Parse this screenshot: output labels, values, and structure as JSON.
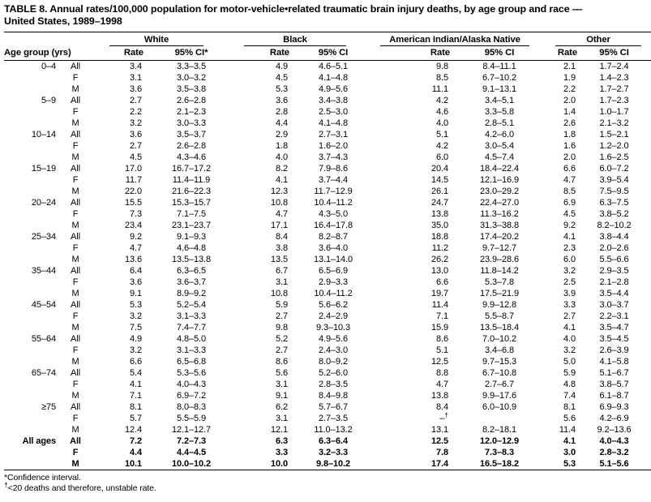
{
  "title_line1": "TABLE 8. Annual rates/100,000 population for motor-vehicle•related traumatic brain injury deaths, by age group and race —",
  "title_line2": "United States, 1989–1998",
  "header": {
    "age_group_label": "Age group (yrs)",
    "groups": [
      {
        "name": "White",
        "rate_label": "Rate",
        "ci_label": "95% CI*"
      },
      {
        "name": "Black",
        "rate_label": "Rate",
        "ci_label": "95% CI"
      },
      {
        "name": "American Indian/Alaska Native",
        "rate_label": "Rate",
        "ci_label": "95% CI"
      },
      {
        "name": "Other",
        "rate_label": "Rate",
        "ci_label": "95% CI"
      }
    ]
  },
  "table": {
    "columns": [
      "Age group",
      "Sex",
      "White Rate",
      "White 95% CI",
      "Black Rate",
      "Black 95% CI",
      "American Indian/Alaska Native Rate",
      "American Indian/Alaska Native 95% CI",
      "Other Rate",
      "Other 95% CI"
    ],
    "rows": [
      {
        "c": [
          "0–4",
          "All",
          "3.4",
          "3.3–3.5",
          "4.9",
          "4.6–5.1",
          "9.8",
          "8.4–11.1",
          "2.1",
          "1.7–2.4"
        ]
      },
      {
        "c": [
          "",
          "F",
          "3.1",
          "3.0–3.2",
          "4.5",
          "4.1–4.8",
          "8.5",
          "6.7–10.2",
          "1.9",
          "1.4–2.3"
        ]
      },
      {
        "c": [
          "",
          "M",
          "3.6",
          "3.5–3.8",
          "5.3",
          "4.9–5.6",
          "11.1",
          "9.1–13.1",
          "2.2",
          "1.7–2.7"
        ]
      },
      {
        "c": [
          "5–9",
          "All",
          "2.7",
          "2.6–2.8",
          "3.6",
          "3.4–3.8",
          "4.2",
          "3.4–5.1",
          "2.0",
          "1.7–2.3"
        ]
      },
      {
        "c": [
          "",
          "F",
          "2.2",
          "2.1–2.3",
          "2.8",
          "2.5–3.0",
          "4.6",
          "3.3–5.8",
          "1.4",
          "1.0–1.7"
        ]
      },
      {
        "c": [
          "",
          "M",
          "3.2",
          "3.0–3.3",
          "4.4",
          "4.1–4.8",
          "4.0",
          "2.8–5.1",
          "2.6",
          "2.1–3.2"
        ]
      },
      {
        "c": [
          "10–14",
          "All",
          "3.6",
          "3.5–3.7",
          "2.9",
          "2.7–3.1",
          "5.1",
          "4.2–6.0",
          "1.8",
          "1.5–2.1"
        ]
      },
      {
        "c": [
          "",
          "F",
          "2.7",
          "2.6–2.8",
          "1.8",
          "1.6–2.0",
          "4.2",
          "3.0–5.4",
          "1.6",
          "1.2–2.0"
        ]
      },
      {
        "c": [
          "",
          "M",
          "4.5",
          "4.3–4.6",
          "4.0",
          "3.7–4.3",
          "6.0",
          "4.5–7.4",
          "2.0",
          "1.6–2.5"
        ]
      },
      {
        "c": [
          "15–19",
          "All",
          "17.0",
          "16.7–17.2",
          "8.2",
          "7.9–8.6",
          "20.4",
          "18.4–22.4",
          "6.6",
          "6.0–7.2"
        ]
      },
      {
        "c": [
          "",
          "F",
          "11.7",
          "11.4–11.9",
          "4.1",
          "3.7–4.4",
          "14.5",
          "12.1–16.9",
          "4.7",
          "3.9–5.4"
        ]
      },
      {
        "c": [
          "",
          "M",
          "22.0",
          "21.6–22.3",
          "12.3",
          "11.7–12.9",
          "26.1",
          "23.0–29.2",
          "8.5",
          "7.5–9.5"
        ]
      },
      {
        "c": [
          "20–24",
          "All",
          "15.5",
          "15.3–15.7",
          "10.8",
          "10.4–11.2",
          "24.7",
          "22.4–27.0",
          "6.9",
          "6.3–7.5"
        ]
      },
      {
        "c": [
          "",
          "F",
          "7.3",
          "7.1–7.5",
          "4.7",
          "4.3–5.0",
          "13.8",
          "11.3–16.2",
          "4.5",
          "3.8–5.2"
        ]
      },
      {
        "c": [
          "",
          "M",
          "23.4",
          "23.1–23.7",
          "17.1",
          "16.4–17.8",
          "35.0",
          "31.3–38.8",
          "9.2",
          "8.2–10.2"
        ]
      },
      {
        "c": [
          "25–34",
          "All",
          "9.2",
          "9.1–9.3",
          "8.4",
          "8.2–8.7",
          "18.8",
          "17.4–20.2",
          "4.1",
          "3.8–4.4"
        ]
      },
      {
        "c": [
          "",
          "F",
          "4.7",
          "4.6–4.8",
          "3.8",
          "3.6–4.0",
          "11.2",
          "9.7–12.7",
          "2.3",
          "2.0–2.6"
        ]
      },
      {
        "c": [
          "",
          "M",
          "13.6",
          "13.5–13.8",
          "13.5",
          "13.1–14.0",
          "26.2",
          "23.9–28.6",
          "6.0",
          "5.5–6.6"
        ]
      },
      {
        "c": [
          "35–44",
          "All",
          "6.4",
          "6.3–6.5",
          "6.7",
          "6.5–6.9",
          "13.0",
          "11.8–14.2",
          "3.2",
          "2.9–3.5"
        ]
      },
      {
        "c": [
          "",
          "F",
          "3.6",
          "3.6–3.7",
          "3.1",
          "2.9–3.3",
          "6.6",
          "5.3–7.8",
          "2.5",
          "2.1–2.8"
        ]
      },
      {
        "c": [
          "",
          "M",
          "9.1",
          "8.9–9.2",
          "10.8",
          "10.4–11.2",
          "19.7",
          "17.5–21.9",
          "3.9",
          "3.5–4.4"
        ]
      },
      {
        "c": [
          "45–54",
          "All",
          "5.3",
          "5.2–5.4",
          "5.9",
          "5.6–6.2",
          "11.4",
          "9.9–12.8",
          "3.3",
          "3.0–3.7"
        ]
      },
      {
        "c": [
          "",
          "F",
          "3.2",
          "3.1–3.3",
          "2.7",
          "2.4–2.9",
          "7.1",
          "5.5–8.7",
          "2.7",
          "2.2–3.1"
        ]
      },
      {
        "c": [
          "",
          "M",
          "7.5",
          "7.4–7.7",
          "9.8",
          "9.3–10.3",
          "15.9",
          "13.5–18.4",
          "4.1",
          "3.5–4.7"
        ]
      },
      {
        "c": [
          "55–64",
          "All",
          "4.9",
          "4.8–5.0",
          "5.2",
          "4.9–5.6",
          "8.6",
          "7.0–10.2",
          "4.0",
          "3.5–4.5"
        ]
      },
      {
        "c": [
          "",
          "F",
          "3.2",
          "3.1–3.3",
          "2.7",
          "2.4–3.0",
          "5.1",
          "3.4–6.8",
          "3.2",
          "2.6–3.9"
        ]
      },
      {
        "c": [
          "",
          "M",
          "6.6",
          "6.5–6.8",
          "8.6",
          "8.0–9.2",
          "12.5",
          "9.7–15.3",
          "5.0",
          "4.1–5.8"
        ]
      },
      {
        "c": [
          "65–74",
          "All",
          "5.4",
          "5.3–5.6",
          "5.6",
          "5.2–6.0",
          "8.8",
          "6.7–10.8",
          "5.9",
          "5.1–6.7"
        ]
      },
      {
        "c": [
          "",
          "F",
          "4.1",
          "4.0–4.3",
          "3.1",
          "2.8–3.5",
          "4.7",
          "2.7–6.7",
          "4.8",
          "3.8–5.7"
        ]
      },
      {
        "c": [
          "",
          "M",
          "7.1",
          "6.9–7.2",
          "9.1",
          "8.4–9.8",
          "13.8",
          "9.9–17.6",
          "7.4",
          "6.1–8.7"
        ]
      },
      {
        "c": [
          "≥75",
          "All",
          "8.1",
          "8.0–8.3",
          "6.2",
          "5.7–6.7",
          "8.4",
          "6.0–10.9",
          "8.1",
          "6.9–9.3"
        ]
      },
      {
        "c": [
          "",
          "F",
          "5.7",
          "5.5–5.9",
          "3.1",
          "2.7–3.5",
          "–†",
          "",
          "5.6",
          "4.2–6.9"
        ]
      },
      {
        "c": [
          "",
          "M",
          "12.4",
          "12.1–12.7",
          "12.1",
          "11.0–13.2",
          "13.1",
          "8.2–18.1",
          "11.4",
          "9.2–13.6"
        ]
      },
      {
        "c": [
          "All ages",
          "All",
          "7.2",
          "7.2–7.3",
          "6.3",
          "6.3–6.4",
          "12.5",
          "12.0–12.9",
          "4.1",
          "4.0–4.3"
        ],
        "bold": true
      },
      {
        "c": [
          "",
          "F",
          "4.4",
          "4.4–4.5",
          "3.3",
          "3.2–3.3",
          "7.8",
          "7.3–8.3",
          "3.0",
          "2.8–3.2"
        ],
        "bold": true
      },
      {
        "c": [
          "",
          "M",
          "10.1",
          "10.0–10.2",
          "10.0",
          "9.8–10.2",
          "17.4",
          "16.5–18.2",
          "5.3",
          "5.1–5.6"
        ],
        "bold": true
      }
    ]
  },
  "footnotes": [
    {
      "marker": "*",
      "text": "Confidence interval."
    },
    {
      "marker": "†",
      "text": "<20 deaths and therefore, unstable rate."
    }
  ],
  "colors": {
    "text": "#000000",
    "background": "#ffffff",
    "rule": "#000000"
  }
}
